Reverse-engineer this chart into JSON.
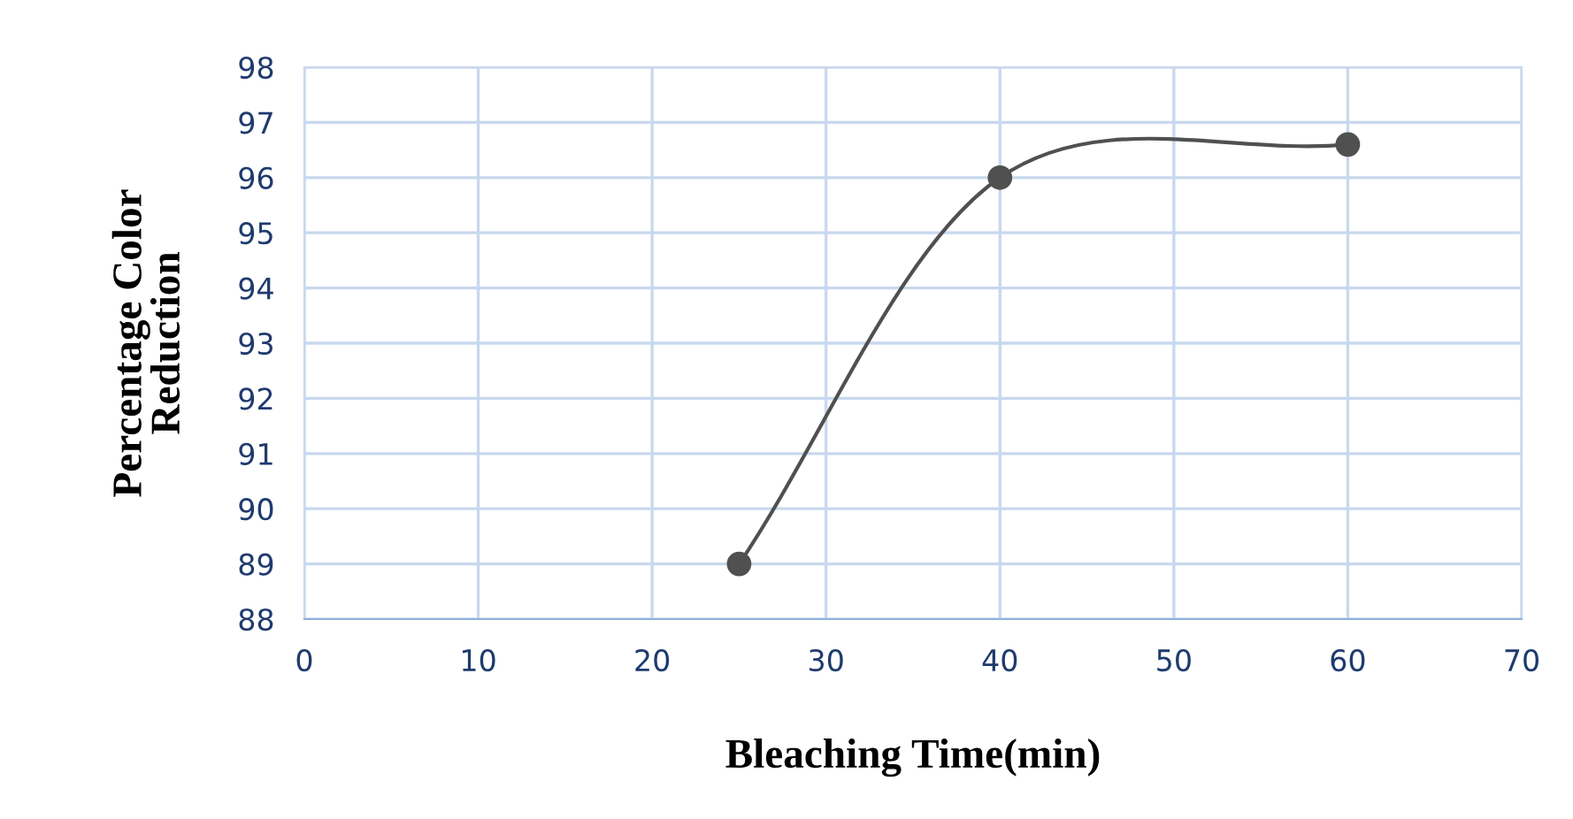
{
  "chart_data": {
    "type": "line",
    "xlabel": "Bleaching Time(min)",
    "ylabel": "Percentage Color\nReduction",
    "x": [
      25,
      40,
      60
    ],
    "series": [
      {
        "color": "#505050",
        "values": [
          89,
          96,
          96.6
        ]
      }
    ],
    "xlim": [
      0,
      70
    ],
    "xticks": [
      0,
      10,
      20,
      30,
      40,
      50,
      60,
      70
    ],
    "ylim": [
      88,
      98
    ],
    "yticks": [
      88,
      89,
      90,
      91,
      92,
      93,
      94,
      95,
      96,
      97,
      98
    ],
    "grid": true,
    "marker": "circle",
    "line_style": "solid",
    "legend": false
  }
}
